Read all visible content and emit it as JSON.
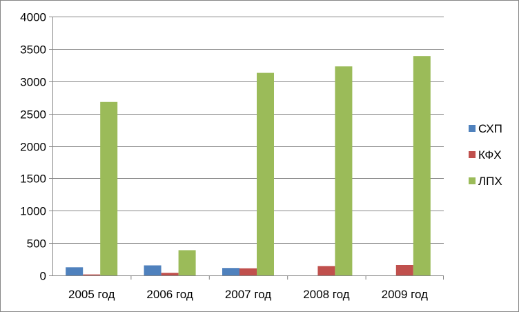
{
  "chart_data": {
    "type": "bar",
    "categories": [
      "2005 год",
      "2006 год",
      "2007 год",
      "2008 год",
      "2009 год"
    ],
    "series": [
      {
        "name": "СХП",
        "color": "#4F81BD",
        "values": [
          125,
          155,
          115,
          0,
          0
        ]
      },
      {
        "name": "КФХ",
        "color": "#C0504D",
        "values": [
          15,
          40,
          110,
          145,
          160
        ]
      },
      {
        "name": "ЛПХ",
        "color": "#9BBB59",
        "values": [
          2680,
          390,
          3130,
          3230,
          3390
        ]
      }
    ],
    "ylim": [
      0,
      4000
    ],
    "yticks": [
      0,
      500,
      1000,
      1500,
      2000,
      2500,
      3000,
      3500,
      4000
    ],
    "grid": true,
    "legend_position": "right"
  }
}
